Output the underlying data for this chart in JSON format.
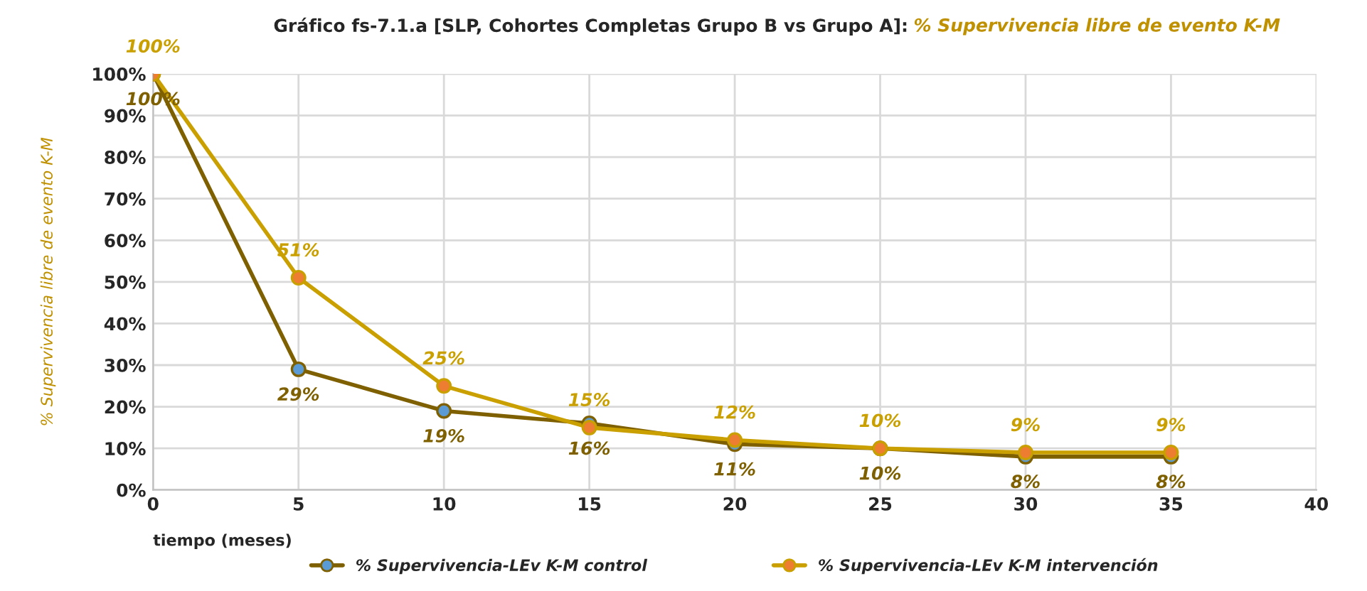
{
  "chart_data": {
    "type": "line",
    "title": "Gráfico fs-7.1.a [SLP, Cohortes Completas Grupo B vs Grupo A]:",
    "subtitle": "% Supervivencia libre de evento K-M",
    "xlabel": "tiempo (meses)",
    "ylabel": "% Supervivencia libre de evento K-M",
    "x": [
      0,
      5,
      10,
      15,
      20,
      25,
      30,
      35
    ],
    "series": [
      {
        "name": "% Supervivencia-LEv K-M control",
        "color": "#7f6000",
        "colors": [
          "#5b9bd5",
          "#5b9bd5",
          "#5b9bd5",
          "#5b9bd5",
          "#5b9bd5",
          "#5b9bd5",
          "#5b9bd5",
          "#5b9bd5"
        ],
        "values": [
          100,
          29,
          19,
          16,
          11,
          10,
          8,
          8
        ],
        "value_labels": [
          "100%",
          "29%",
          "19%",
          "16%",
          "11%",
          "10%",
          "8%",
          "8%"
        ]
      },
      {
        "name": "% Supervivencia-LEv K-M intervención",
        "color": "#c9a000",
        "colors": [
          "#ed7d31",
          "#ed7d31",
          "#ed7d31",
          "#ed7d31",
          "#ed7d31",
          "#ed7d31",
          "#ed7d31",
          "#ed7d31"
        ],
        "values": [
          100,
          51,
          25,
          15,
          12,
          10,
          9,
          9
        ],
        "value_labels": [
          "100%",
          "51%",
          "25%",
          "15%",
          "12%",
          "10%",
          "9%",
          "9%"
        ]
      }
    ],
    "xlim": [
      0,
      40
    ],
    "xticks": [
      0,
      5,
      10,
      15,
      20,
      25,
      30,
      35,
      40
    ],
    "ylim": [
      0,
      100
    ],
    "yticks": [
      {
        "value": 0,
        "label": "0%"
      },
      {
        "value": 10,
        "label": "10%"
      },
      {
        "value": 20,
        "label": "20%"
      },
      {
        "value": 30,
        "label": "30%"
      },
      {
        "value": 40,
        "label": "40%"
      },
      {
        "value": 50,
        "label": "50%"
      },
      {
        "value": 60,
        "label": "60%"
      },
      {
        "value": 70,
        "label": "70%"
      },
      {
        "value": 80,
        "label": "80%"
      },
      {
        "value": 90,
        "label": "90%"
      },
      {
        "value": 100,
        "label": "100%"
      }
    ],
    "grid": true,
    "legend": "bottom",
    "marker": "circle",
    "line_style": "solid"
  }
}
